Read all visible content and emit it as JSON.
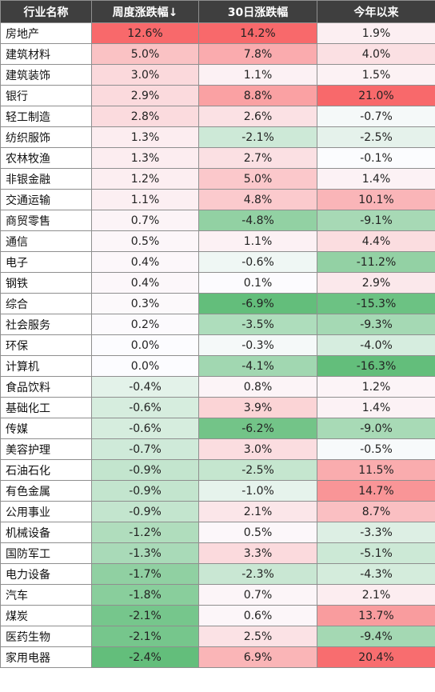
{
  "chart_data": {
    "type": "table",
    "columns": [
      "行业名称",
      "周度涨跌幅↓",
      "30日涨跌幅",
      "今年以来"
    ],
    "rows": [
      {
        "name": "房地产",
        "weekly": 12.6,
        "d30": 14.2,
        "ytd": 1.9
      },
      {
        "name": "建筑材料",
        "weekly": 5.0,
        "d30": 7.8,
        "ytd": 4.0
      },
      {
        "name": "建筑装饰",
        "weekly": 3.0,
        "d30": 1.1,
        "ytd": 1.5
      },
      {
        "name": "银行",
        "weekly": 2.9,
        "d30": 8.8,
        "ytd": 21.0
      },
      {
        "name": "轻工制造",
        "weekly": 2.8,
        "d30": 2.6,
        "ytd": -0.7
      },
      {
        "name": "纺织服饰",
        "weekly": 1.3,
        "d30": -2.1,
        "ytd": -2.5
      },
      {
        "name": "农林牧渔",
        "weekly": 1.3,
        "d30": 2.7,
        "ytd": -0.1
      },
      {
        "name": "非银金融",
        "weekly": 1.2,
        "d30": 5.0,
        "ytd": 1.4
      },
      {
        "name": "交通运输",
        "weekly": 1.1,
        "d30": 4.8,
        "ytd": 10.1
      },
      {
        "name": "商贸零售",
        "weekly": 0.7,
        "d30": -4.8,
        "ytd": -9.1
      },
      {
        "name": "通信",
        "weekly": 0.5,
        "d30": 1.1,
        "ytd": 4.4
      },
      {
        "name": "电子",
        "weekly": 0.4,
        "d30": -0.6,
        "ytd": -11.2
      },
      {
        "name": "钢铁",
        "weekly": 0.4,
        "d30": 0.1,
        "ytd": 2.9
      },
      {
        "name": "综合",
        "weekly": 0.3,
        "d30": -6.9,
        "ytd": -15.3
      },
      {
        "name": "社会服务",
        "weekly": 0.2,
        "d30": -3.5,
        "ytd": -9.3
      },
      {
        "name": "环保",
        "weekly": 0.0,
        "d30": -0.3,
        "ytd": -4.0
      },
      {
        "name": "计算机",
        "weekly": 0.0,
        "d30": -4.1,
        "ytd": -16.3
      },
      {
        "name": "食品饮料",
        "weekly": -0.4,
        "d30": 0.8,
        "ytd": 1.2
      },
      {
        "name": "基础化工",
        "weekly": -0.6,
        "d30": 3.9,
        "ytd": 1.4
      },
      {
        "name": "传媒",
        "weekly": -0.6,
        "d30": -6.2,
        "ytd": -9.0
      },
      {
        "name": "美容护理",
        "weekly": -0.7,
        "d30": 3.0,
        "ytd": -0.5
      },
      {
        "name": "石油石化",
        "weekly": -0.9,
        "d30": -2.5,
        "ytd": 11.5
      },
      {
        "name": "有色金属",
        "weekly": -0.9,
        "d30": -1.0,
        "ytd": 14.7
      },
      {
        "name": "公用事业",
        "weekly": -0.9,
        "d30": 2.1,
        "ytd": 8.7
      },
      {
        "name": "机械设备",
        "weekly": -1.2,
        "d30": 0.5,
        "ytd": -3.3
      },
      {
        "name": "国防军工",
        "weekly": -1.3,
        "d30": 3.3,
        "ytd": -5.1
      },
      {
        "name": "电力设备",
        "weekly": -1.7,
        "d30": -2.3,
        "ytd": -4.3
      },
      {
        "name": "汽车",
        "weekly": -1.8,
        "d30": 0.7,
        "ytd": 2.1
      },
      {
        "name": "煤炭",
        "weekly": -2.1,
        "d30": 0.6,
        "ytd": 13.7
      },
      {
        "name": "医药生物",
        "weekly": -2.1,
        "d30": 2.5,
        "ytd": -9.4
      },
      {
        "name": "家用电器",
        "weekly": -2.4,
        "d30": 6.9,
        "ytd": 20.4
      }
    ],
    "colors": {
      "positive_max": "#f8696b",
      "negative_max": "#63be7b",
      "neutral": "#fcfcff",
      "header_bg": "#3f3f3f"
    }
  }
}
